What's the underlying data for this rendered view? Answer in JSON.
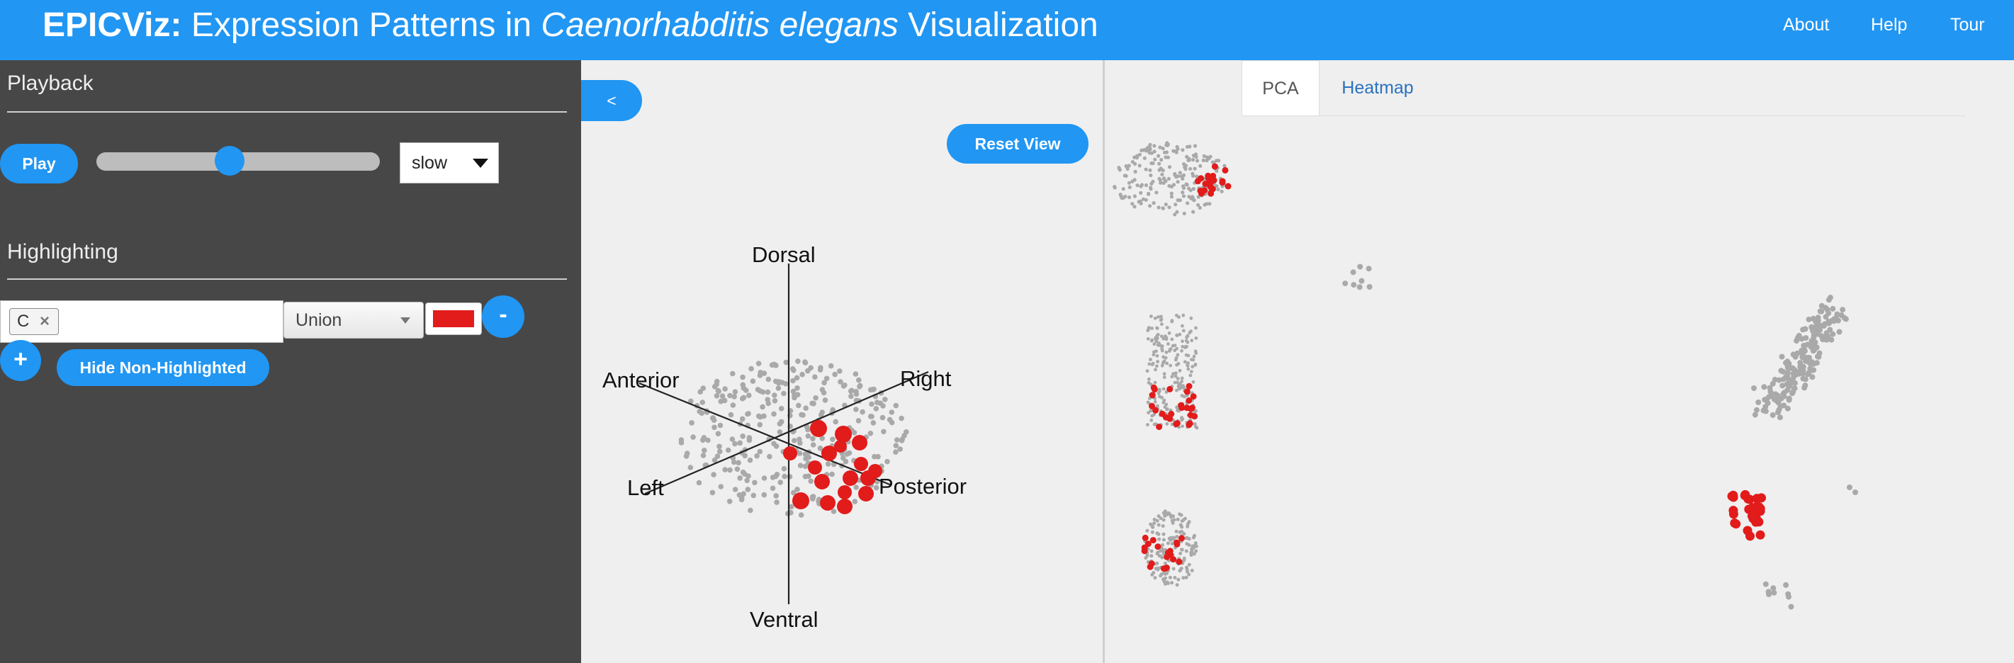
{
  "header": {
    "brand": "EPICViz:",
    "title_pre": " Expression Patterns in ",
    "title_italic": "Caenorhabditis elegans",
    "title_post": " Visualization",
    "nav": [
      "About",
      "Help",
      "Tour"
    ]
  },
  "sidebar": {
    "playback": {
      "title": "Playback",
      "play_label": "Play",
      "speed_value": "slow",
      "slider_value": 0.47
    },
    "highlighting": {
      "title": "Highlighting",
      "tag": "C",
      "tag_remove": "×",
      "set_mode": "Union",
      "color": "#e21b1b",
      "remove_label": "-",
      "add_label": "+",
      "hide_label": "Hide Non-Highlighted"
    }
  },
  "viewer": {
    "collapse_label": "<",
    "reset_label": "Reset View",
    "axes": {
      "dorsal": "Dorsal",
      "ventral": "Ventral",
      "anterior": "Anterior",
      "posterior": "Posterior",
      "left": "Left",
      "right": "Right"
    }
  },
  "tabs": [
    {
      "label": "PCA",
      "active": true
    },
    {
      "label": "Heatmap",
      "active": false
    }
  ],
  "colors": {
    "accent": "#2196f3",
    "highlight": "#e21b1b",
    "cell": "#a9a9a9",
    "sidebar": "#474747"
  }
}
